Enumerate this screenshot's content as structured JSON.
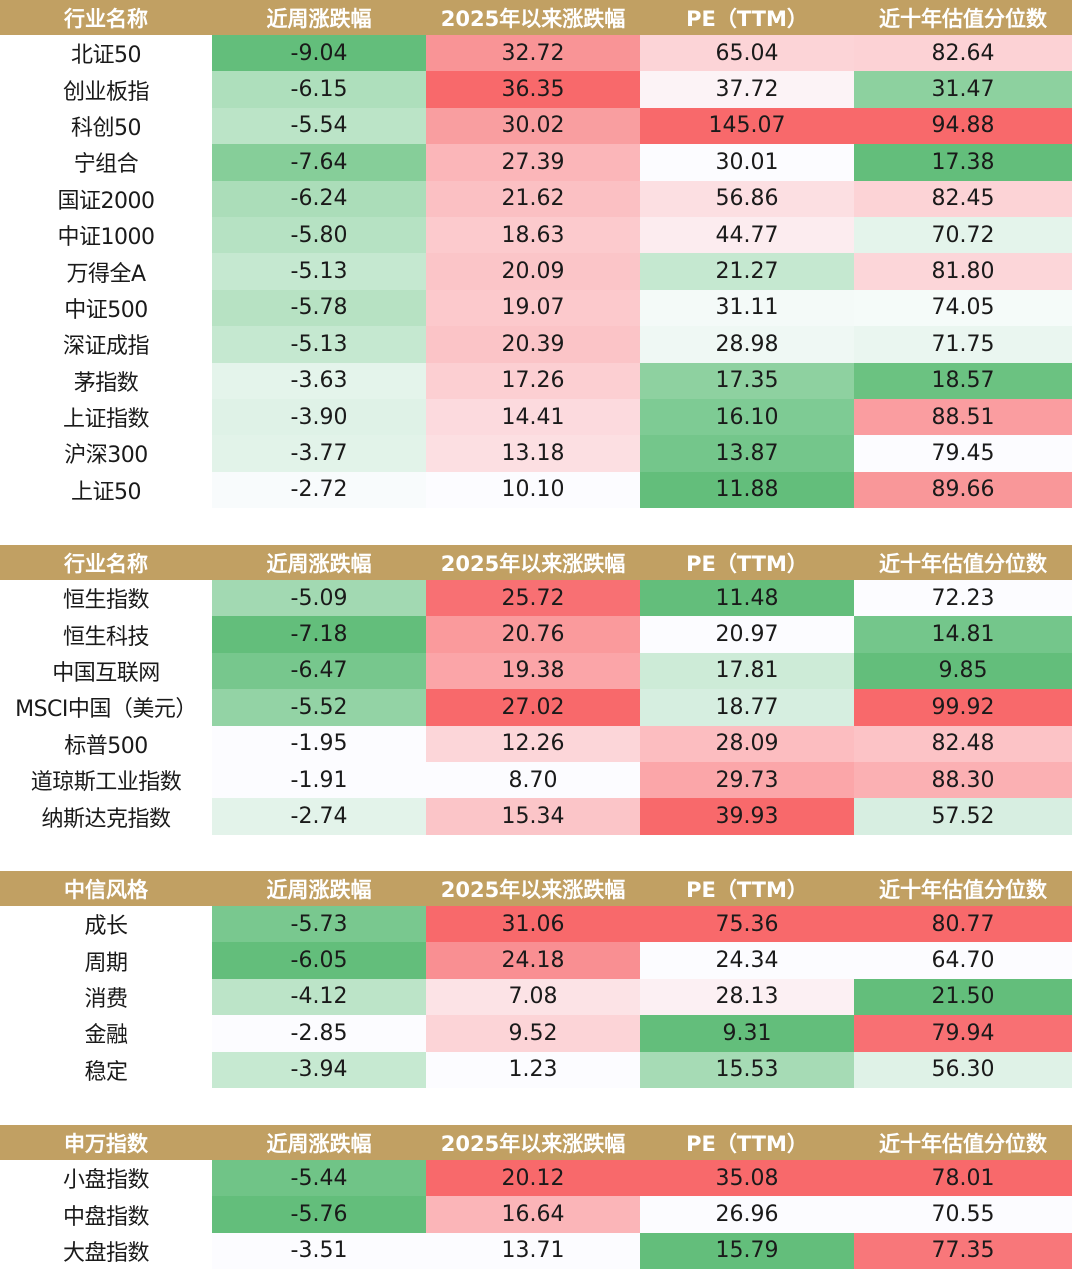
{
  "colors": {
    "header_bg": "#c1a063",
    "green_strong": "#63be7b",
    "red_strong": "#f8696b",
    "neutral": "#fcfcff"
  },
  "tables": [
    {
      "id": "a-share",
      "headers": [
        "行业名称",
        "近周涨跌幅",
        "2025年以来涨跌幅",
        "PE（TTM）",
        "近十年估值分位数"
      ],
      "rows": [
        [
          "北证50",
          "-9.04",
          "32.72",
          "65.04",
          "82.64"
        ],
        [
          "创业板指",
          "-6.15",
          "36.35",
          "37.72",
          "31.47"
        ],
        [
          "科创50",
          "-5.54",
          "30.02",
          "145.07",
          "94.88"
        ],
        [
          "宁组合",
          "-7.64",
          "27.39",
          "30.01",
          "17.38"
        ],
        [
          "国证2000",
          "-6.24",
          "21.62",
          "56.86",
          "82.45"
        ],
        [
          "中证1000",
          "-5.80",
          "18.63",
          "44.77",
          "70.72"
        ],
        [
          "万得全A",
          "-5.13",
          "20.09",
          "21.27",
          "81.80"
        ],
        [
          "中证500",
          "-5.78",
          "19.07",
          "31.11",
          "74.05"
        ],
        [
          "深证成指",
          "-5.13",
          "20.39",
          "28.98",
          "71.75"
        ],
        [
          "茅指数",
          "-3.63",
          "17.26",
          "17.35",
          "18.57"
        ],
        [
          "上证指数",
          "-3.90",
          "14.41",
          "16.10",
          "88.51"
        ],
        [
          "沪深300",
          "-3.77",
          "13.18",
          "13.87",
          "79.45"
        ],
        [
          "上证50",
          "-2.72",
          "10.10",
          "11.88",
          "89.66"
        ]
      ],
      "colors": [
        [
          "#63be7b",
          "#f99496",
          "#fcd4d7",
          "#fcd2d5"
        ],
        [
          "#aedfbc",
          "#f8696b",
          "#fcf3f6",
          "#8dd19f"
        ],
        [
          "#bbe4c7",
          "#f99ea0",
          "#f8696b",
          "#f8696b"
        ],
        [
          "#86ce99",
          "#fbb6b9",
          "#fcfcff",
          "#63be7b"
        ],
        [
          "#abddb9",
          "#fbc0c3",
          "#fcdfe2",
          "#fcd3d6"
        ],
        [
          "#b6e2c3",
          "#fccacd",
          "#fcecef",
          "#e4f4eb"
        ],
        [
          "#c5e8d0",
          "#fbc5c8",
          "#c5e8d0",
          "#fcd6d9"
        ],
        [
          "#b7e2c3",
          "#fcc9cc",
          "#f4faf8",
          "#f5fbf9"
        ],
        [
          "#c5e8d0",
          "#fbc4c7",
          "#eff8f4",
          "#eaf6f0"
        ],
        [
          "#e4f4eb",
          "#fccfd2",
          "#8ed1a0",
          "#6bc281"
        ],
        [
          "#dff2e7",
          "#fcdade",
          "#7ecb94",
          "#fa9da0"
        ],
        [
          "#e2f3e9",
          "#fcdfe2",
          "#74c68b",
          "#fcfcff"
        ],
        [
          "#f8fbfc",
          "#fcfcff",
          "#63be7b",
          "#f99799"
        ]
      ]
    },
    {
      "id": "overseas",
      "headers": [
        "行业名称",
        "近周涨跌幅",
        "2025年以来涨跌幅",
        "PE（TTM）",
        "近十年估值分位数"
      ],
      "rows": [
        [
          "恒生指数",
          "-5.09",
          "25.72",
          "11.48",
          "72.23"
        ],
        [
          "恒生科技",
          "-7.18",
          "20.76",
          "20.97",
          "14.81"
        ],
        [
          "中国互联网",
          "-6.47",
          "19.38",
          "17.81",
          "9.85"
        ],
        [
          "MSCI中国（美元）",
          "-5.52",
          "27.02",
          "18.77",
          "99.92"
        ],
        [
          "标普500",
          "-1.95",
          "12.26",
          "28.09",
          "82.48"
        ],
        [
          "道琼斯工业指数",
          "-1.91",
          "8.70",
          "29.73",
          "88.30"
        ],
        [
          "纳斯达克指数",
          "-2.74",
          "15.34",
          "39.93",
          "57.52"
        ]
      ],
      "colors": [
        [
          "#a2d9b2",
          "#f87073",
          "#63be7b",
          "#fcfcff"
        ],
        [
          "#63be7b",
          "#fa9a9c",
          "#fcfcff",
          "#74c68b"
        ],
        [
          "#77c78d",
          "#fba5a8",
          "#cdebd7",
          "#63be7b"
        ],
        [
          "#93d3a5",
          "#f8696b",
          "#d6eee0",
          "#f8696b"
        ],
        [
          "#fcfcff",
          "#fcd6d9",
          "#fcbdc0",
          "#fcc3c6"
        ],
        [
          "#fcfcff",
          "#fcfcff",
          "#fba6a9",
          "#fbb0b3"
        ],
        [
          "#e3f3ea",
          "#fbc5c8",
          "#f8696b",
          "#d7eee1"
        ]
      ]
    },
    {
      "id": "citic-style",
      "headers": [
        "中信风格",
        "近周涨跌幅",
        "2025年以来涨跌幅",
        "PE（TTM）",
        "近十年估值分位数"
      ],
      "rows": [
        [
          "成长",
          "-5.73",
          "31.06",
          "75.36",
          "80.77"
        ],
        [
          "周期",
          "-6.05",
          "24.18",
          "24.34",
          "64.70"
        ],
        [
          "消费",
          "-4.12",
          "7.08",
          "28.13",
          "21.50"
        ],
        [
          "金融",
          "-2.85",
          "9.52",
          "9.31",
          "79.94"
        ],
        [
          "稳定",
          "-3.94",
          "1.23",
          "15.53",
          "56.30"
        ]
      ],
      "colors": [
        [
          "#79c88f",
          "#f8696b",
          "#f8696b",
          "#f8696b"
        ],
        [
          "#63be7b",
          "#f98f92",
          "#fcfcff",
          "#fcfcff"
        ],
        [
          "#bce4c8",
          "#fce3e6",
          "#fcf0f3",
          "#63be7b"
        ],
        [
          "#fcfcff",
          "#fcd4d7",
          "#63be7b",
          "#f87073"
        ],
        [
          "#c6e9d1",
          "#fcfcff",
          "#a6dbb5",
          "#dff2e7"
        ]
      ]
    },
    {
      "id": "sw-index",
      "headers": [
        "申万指数",
        "近周涨跌幅",
        "2025年以来涨跌幅",
        "PE（TTM）",
        "近十年估值分位数"
      ],
      "rows": [
        [
          "小盘指数",
          "-5.44",
          "20.12",
          "35.08",
          "78.01"
        ],
        [
          "中盘指数",
          "-5.76",
          "16.64",
          "26.96",
          "70.55"
        ],
        [
          "大盘指数",
          "-3.51",
          "13.71",
          "15.79",
          "77.35"
        ]
      ],
      "colors": [
        [
          "#70c487",
          "#f8696b",
          "#f8696b",
          "#f8696b"
        ],
        [
          "#63be7b",
          "#fbb5b8",
          "#fcfcff",
          "#fcfcff"
        ],
        [
          "#fcfcff",
          "#fcfcff",
          "#63be7b",
          "#f8777a"
        ]
      ]
    }
  ]
}
